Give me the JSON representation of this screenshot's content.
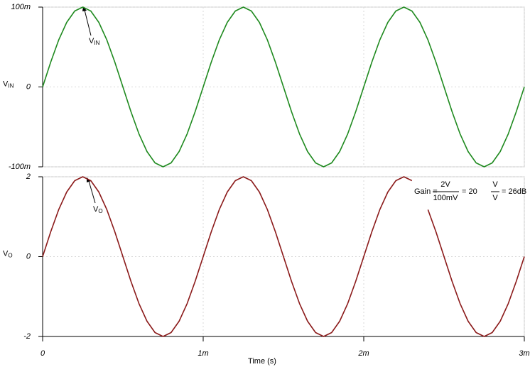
{
  "chart_data": [
    {
      "type": "line",
      "y_label": "V",
      "y_label_sub": "IN",
      "annotation": {
        "text": "V",
        "sub": "IN"
      },
      "x": [
        0,
        5e-05,
        0.0001,
        0.00015,
        0.0002,
        0.00025,
        0.0003,
        0.00035,
        0.0004,
        0.00045,
        0.0005,
        0.00055,
        0.0006,
        0.00065,
        0.0007,
        0.00075,
        0.0008,
        0.00085,
        0.0009,
        0.00095,
        0.001,
        0.00105,
        0.0011,
        0.00115,
        0.0012,
        0.00125,
        0.0013,
        0.00135,
        0.0014,
        0.00145,
        0.0015,
        0.00155,
        0.0016,
        0.00165,
        0.0017,
        0.00175,
        0.0018,
        0.00185,
        0.0019,
        0.00195,
        0.002,
        0.00205,
        0.0021,
        0.00215,
        0.0022,
        0.00225,
        0.0023,
        0.00235,
        0.0024,
        0.00245,
        0.0025,
        0.00255,
        0.0026,
        0.00265,
        0.0027,
        0.00275,
        0.0028,
        0.00285,
        0.0029,
        0.00295,
        0.003
      ],
      "series": [
        {
          "color": "#1f8a1f",
          "values": [
            0,
            0.0309,
            0.0588,
            0.0809,
            0.0951,
            0.1,
            0.0951,
            0.0809,
            0.0588,
            0.0309,
            0,
            -0.0309,
            -0.0588,
            -0.0809,
            -0.0951,
            -0.1,
            -0.0951,
            -0.0809,
            -0.0588,
            -0.0309,
            0,
            0.0309,
            0.0588,
            0.0809,
            0.0951,
            0.1,
            0.0951,
            0.0809,
            0.0588,
            0.0309,
            0,
            -0.0309,
            -0.0588,
            -0.0809,
            -0.0951,
            -0.1,
            -0.0951,
            -0.0809,
            -0.0588,
            -0.0309,
            0,
            0.0309,
            0.0588,
            0.0809,
            0.0951,
            0.1,
            0.0951,
            0.0809,
            0.0588,
            0.0309,
            0,
            -0.0309,
            -0.0588,
            -0.0809,
            -0.0951,
            -0.1,
            -0.0951,
            -0.0809,
            -0.0588,
            -0.0309,
            0
          ]
        }
      ],
      "xlim": [
        0,
        0.003
      ],
      "xticks": [
        0,
        0.001,
        0.002,
        0.003
      ],
      "ylim": [
        -0.1,
        0.1
      ],
      "yticks": [
        {
          "value": -0.1,
          "label": "-100m"
        },
        0,
        {
          "value": 0.1,
          "label": "100m"
        }
      ],
      "grid": true
    },
    {
      "type": "line",
      "y_label": "V",
      "y_label_sub": "O",
      "annotation": {
        "text": "V",
        "sub": "O"
      },
      "gain": {
        "lead": "Gain =",
        "num1": "2V",
        "den1": "100mV",
        "mid": "= 20",
        "num2": "V",
        "den2": "V",
        "tail": "= 26dB"
      },
      "x_label": "Time (s)",
      "x": [
        0,
        5e-05,
        0.0001,
        0.00015,
        0.0002,
        0.00025,
        0.0003,
        0.00035,
        0.0004,
        0.00045,
        0.0005,
        0.00055,
        0.0006,
        0.00065,
        0.0007,
        0.00075,
        0.0008,
        0.00085,
        0.0009,
        0.00095,
        0.001,
        0.00105,
        0.0011,
        0.00115,
        0.0012,
        0.00125,
        0.0013,
        0.00135,
        0.0014,
        0.00145,
        0.0015,
        0.00155,
        0.0016,
        0.00165,
        0.0017,
        0.00175,
        0.0018,
        0.00185,
        0.0019,
        0.00195,
        0.002,
        0.00205,
        0.0021,
        0.00215,
        0.0022,
        0.00225,
        0.0023,
        0.00235,
        0.0024,
        0.00245,
        0.0025,
        0.00255,
        0.0026,
        0.00265,
        0.0027,
        0.00275,
        0.0028,
        0.00285,
        0.0029,
        0.00295,
        0.003
      ],
      "series": [
        {
          "color": "#8b1a1a",
          "values": [
            0,
            0.618,
            1.176,
            1.618,
            1.902,
            2,
            1.902,
            1.618,
            1.176,
            0.618,
            0,
            -0.618,
            -1.176,
            -1.618,
            -1.902,
            -2,
            -1.902,
            -1.618,
            -1.176,
            -0.618,
            0,
            0.618,
            1.176,
            1.618,
            1.902,
            2,
            1.902,
            1.618,
            1.176,
            0.618,
            0,
            -0.618,
            -1.176,
            -1.618,
            -1.902,
            -2,
            -1.902,
            -1.618,
            -1.176,
            -0.618,
            0,
            0.618,
            1.176,
            1.618,
            1.902,
            2,
            1.902,
            null,
            1.176,
            0.618,
            0,
            -0.618,
            -1.176,
            -1.618,
            -1.902,
            -2,
            -1.902,
            -1.618,
            -1.176,
            -0.618,
            0
          ]
        }
      ],
      "xlim": [
        0,
        0.003
      ],
      "xticks": [
        0,
        {
          "value": 0.001,
          "label": "1m"
        },
        {
          "value": 0.002,
          "label": "2m"
        },
        {
          "value": 0.003,
          "label": "3m"
        }
      ],
      "ylim": [
        -2,
        2
      ],
      "yticks": [
        -2,
        0,
        2
      ],
      "grid": true
    }
  ]
}
